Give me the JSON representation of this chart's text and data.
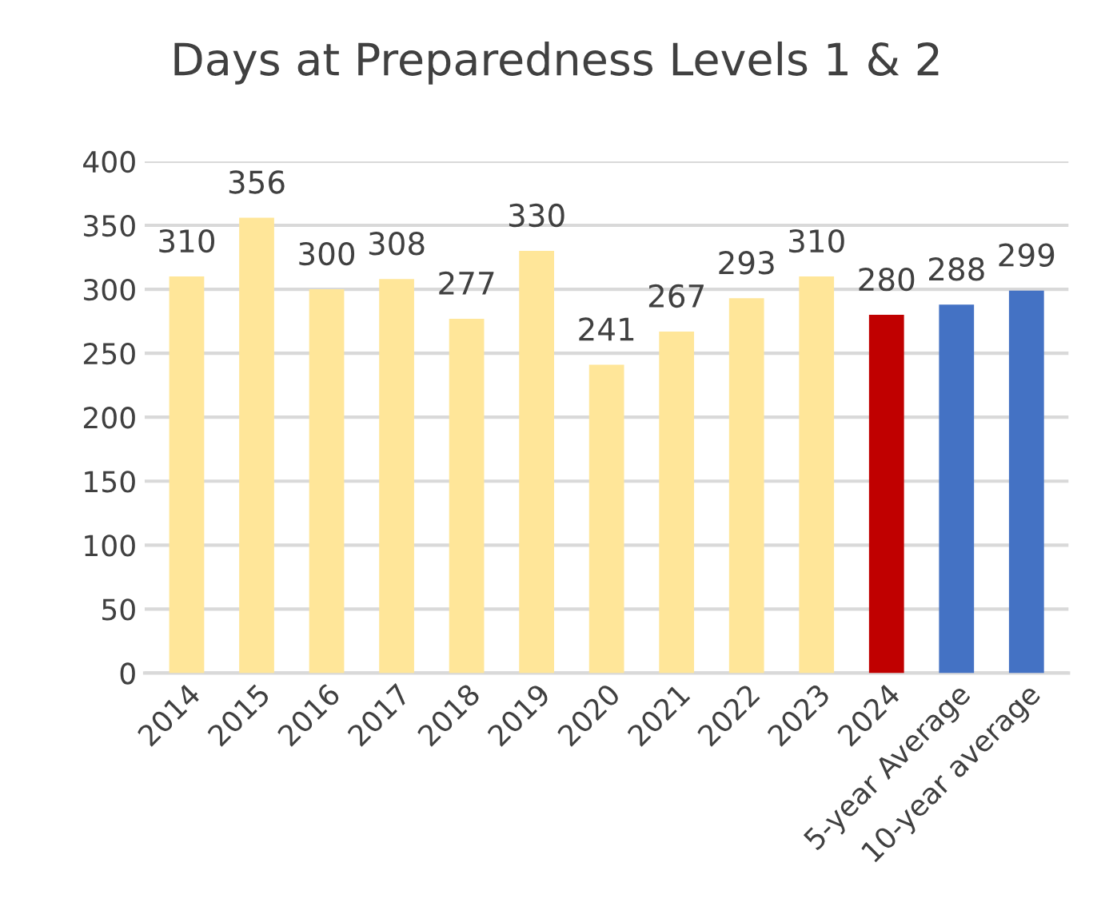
{
  "chart_data": {
    "type": "bar",
    "title": "Days at Preparedness Levels 1 & 2",
    "categories": [
      "2014",
      "2015",
      "2016",
      "2017",
      "2018",
      "2019",
      "2020",
      "2021",
      "2022",
      "2023",
      "2024",
      "5-year Average",
      "10-year average"
    ],
    "values": [
      310,
      356,
      300,
      308,
      277,
      330,
      241,
      267,
      293,
      310,
      280,
      288,
      299
    ],
    "colors": [
      "#ffe699",
      "#ffe699",
      "#ffe699",
      "#ffe699",
      "#ffe699",
      "#ffe699",
      "#ffe699",
      "#ffe699",
      "#ffe699",
      "#ffe699",
      "#c00000",
      "#4472c4",
      "#4472c4"
    ],
    "ylim": [
      0,
      400
    ],
    "yticks": [
      0,
      50,
      100,
      150,
      200,
      250,
      300,
      350,
      400
    ],
    "grid": "y",
    "data_labels": true
  }
}
